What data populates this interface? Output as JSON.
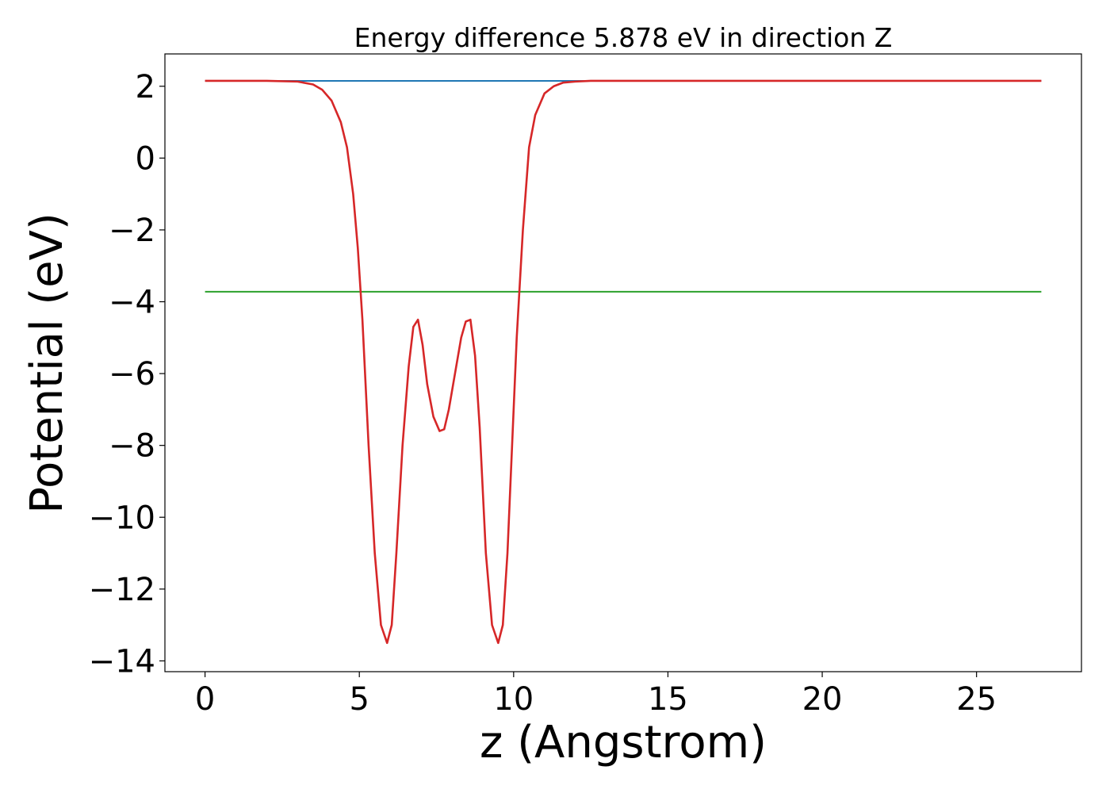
{
  "chart_data": {
    "type": "line",
    "title": "Energy difference 5.878 eV in direction Z",
    "xlabel": "z (Angstrom)",
    "ylabel": "Potential (eV)",
    "xlim": [
      -1.3,
      28.4
    ],
    "ylim": [
      -14.3,
      2.9
    ],
    "xticks": [
      0,
      5,
      10,
      15,
      20,
      25
    ],
    "yticks": [
      2,
      0,
      -2,
      -4,
      -6,
      -8,
      -10,
      -12,
      -14
    ],
    "xtick_labels": [
      "0",
      "5",
      "10",
      "15",
      "20",
      "25"
    ],
    "ytick_labels": [
      "2",
      "0",
      "−2",
      "−4",
      "−6",
      "−8",
      "−10",
      "−12",
      "−14"
    ],
    "grid": false,
    "series": [
      {
        "color": "#1f77b4",
        "x": [
          0,
          27.1
        ],
        "y": [
          2.15,
          2.15
        ]
      },
      {
        "color": "#2ca02c",
        "x": [
          0,
          27.1
        ],
        "y": [
          -3.72,
          -3.72
        ]
      },
      {
        "color": "#9467bd",
        "x": [
          12.5,
          27.1
        ],
        "y": [
          2.15,
          2.15
        ]
      },
      {
        "color": "#d62728",
        "x": [
          0,
          2.0,
          3.0,
          3.5,
          3.8,
          4.1,
          4.4,
          4.6,
          4.8,
          4.95,
          5.1,
          5.3,
          5.5,
          5.7,
          5.9,
          6.05,
          6.2,
          6.4,
          6.6,
          6.75,
          6.9,
          7.05,
          7.2,
          7.4,
          7.6,
          7.75,
          7.9,
          8.1,
          8.3,
          8.45,
          8.6,
          8.75,
          8.9,
          9.1,
          9.3,
          9.5,
          9.65,
          9.8,
          9.95,
          10.1,
          10.3,
          10.5,
          10.7,
          11.0,
          11.3,
          11.6,
          12.0,
          12.5,
          14.0,
          27.1
        ],
        "y": [
          2.15,
          2.15,
          2.13,
          2.05,
          1.9,
          1.6,
          1.0,
          0.3,
          -1.0,
          -2.5,
          -4.5,
          -8.0,
          -11.0,
          -13.0,
          -13.5,
          -13.0,
          -11.0,
          -8.0,
          -5.8,
          -4.7,
          -4.5,
          -5.2,
          -6.3,
          -7.2,
          -7.6,
          -7.55,
          -7.0,
          -6.0,
          -5.0,
          -4.55,
          -4.5,
          -5.5,
          -7.5,
          -11.0,
          -13.0,
          -13.5,
          -13.0,
          -11.0,
          -8.0,
          -5.0,
          -2.0,
          0.3,
          1.2,
          1.8,
          2.0,
          2.1,
          2.13,
          2.15,
          2.15,
          2.15
        ]
      }
    ]
  }
}
